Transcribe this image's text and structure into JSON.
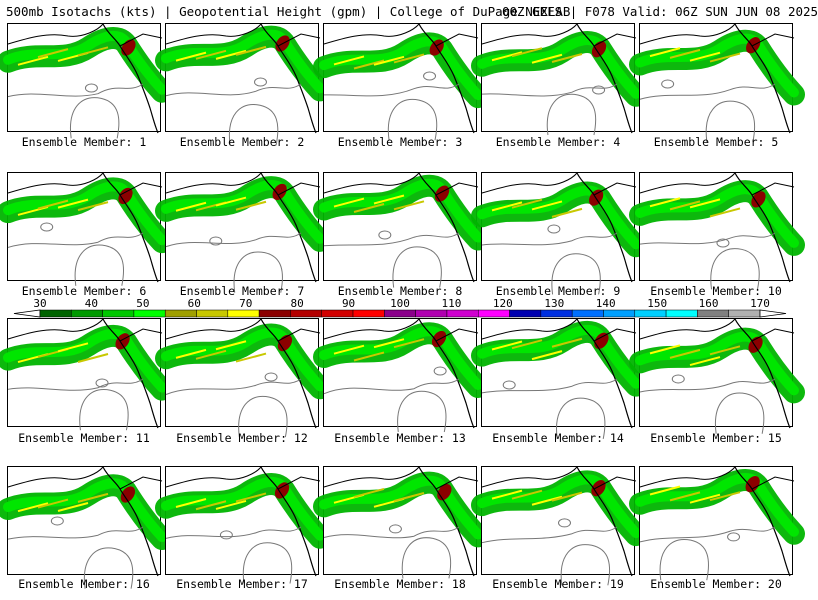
{
  "title": {
    "left": "500mb Isotachs (kts) | Geopotential Height (gpm) | College of DuPage NEXLAB",
    "right": "00Z GEFS | F078 Valid: 06Z SUN JUN 08 2025"
  },
  "colorbar": {
    "labels": [
      "30",
      "40",
      "50",
      "60",
      "70",
      "80",
      "90",
      "100",
      "110",
      "120",
      "130",
      "140",
      "150",
      "160",
      "170"
    ],
    "colors": [
      "#006400",
      "#009a00",
      "#00c800",
      "#00ff00",
      "#a0a000",
      "#c8c800",
      "#ffff00",
      "#8b0000",
      "#b40000",
      "#d20000",
      "#ff0000",
      "#8b008b",
      "#b000b0",
      "#d000d0",
      "#ff00ff",
      "#0000b0",
      "#0030e0",
      "#0070ff",
      "#00a0ff",
      "#00d0ff",
      "#00ffff",
      "#808080",
      "#b0b0b0"
    ]
  },
  "panels": [
    {
      "label": "Ensemble Member: 1"
    },
    {
      "label": "Ensemble Member: 2"
    },
    {
      "label": "Ensemble Member: 3"
    },
    {
      "label": "Ensemble Member: 4"
    },
    {
      "label": "Ensemble Member: 5"
    },
    {
      "label": "Ensemble Member: 6"
    },
    {
      "label": "Ensemble Member: 7"
    },
    {
      "label": "Ensemble Member: 8"
    },
    {
      "label": "Ensemble Member: 9"
    },
    {
      "label": "Ensemble Member: 10"
    },
    {
      "label": "Ensemble Member: 11"
    },
    {
      "label": "Ensemble Member: 12"
    },
    {
      "label": "Ensemble Member: 13"
    },
    {
      "label": "Ensemble Member: 14"
    },
    {
      "label": "Ensemble Member: 15"
    },
    {
      "label": "Ensemble Member: 16"
    },
    {
      "label": "Ensemble Member: 17"
    },
    {
      "label": "Ensemble Member: 18"
    },
    {
      "label": "Ensemble Member: 19"
    },
    {
      "label": "Ensemble Member: 20"
    }
  ]
}
